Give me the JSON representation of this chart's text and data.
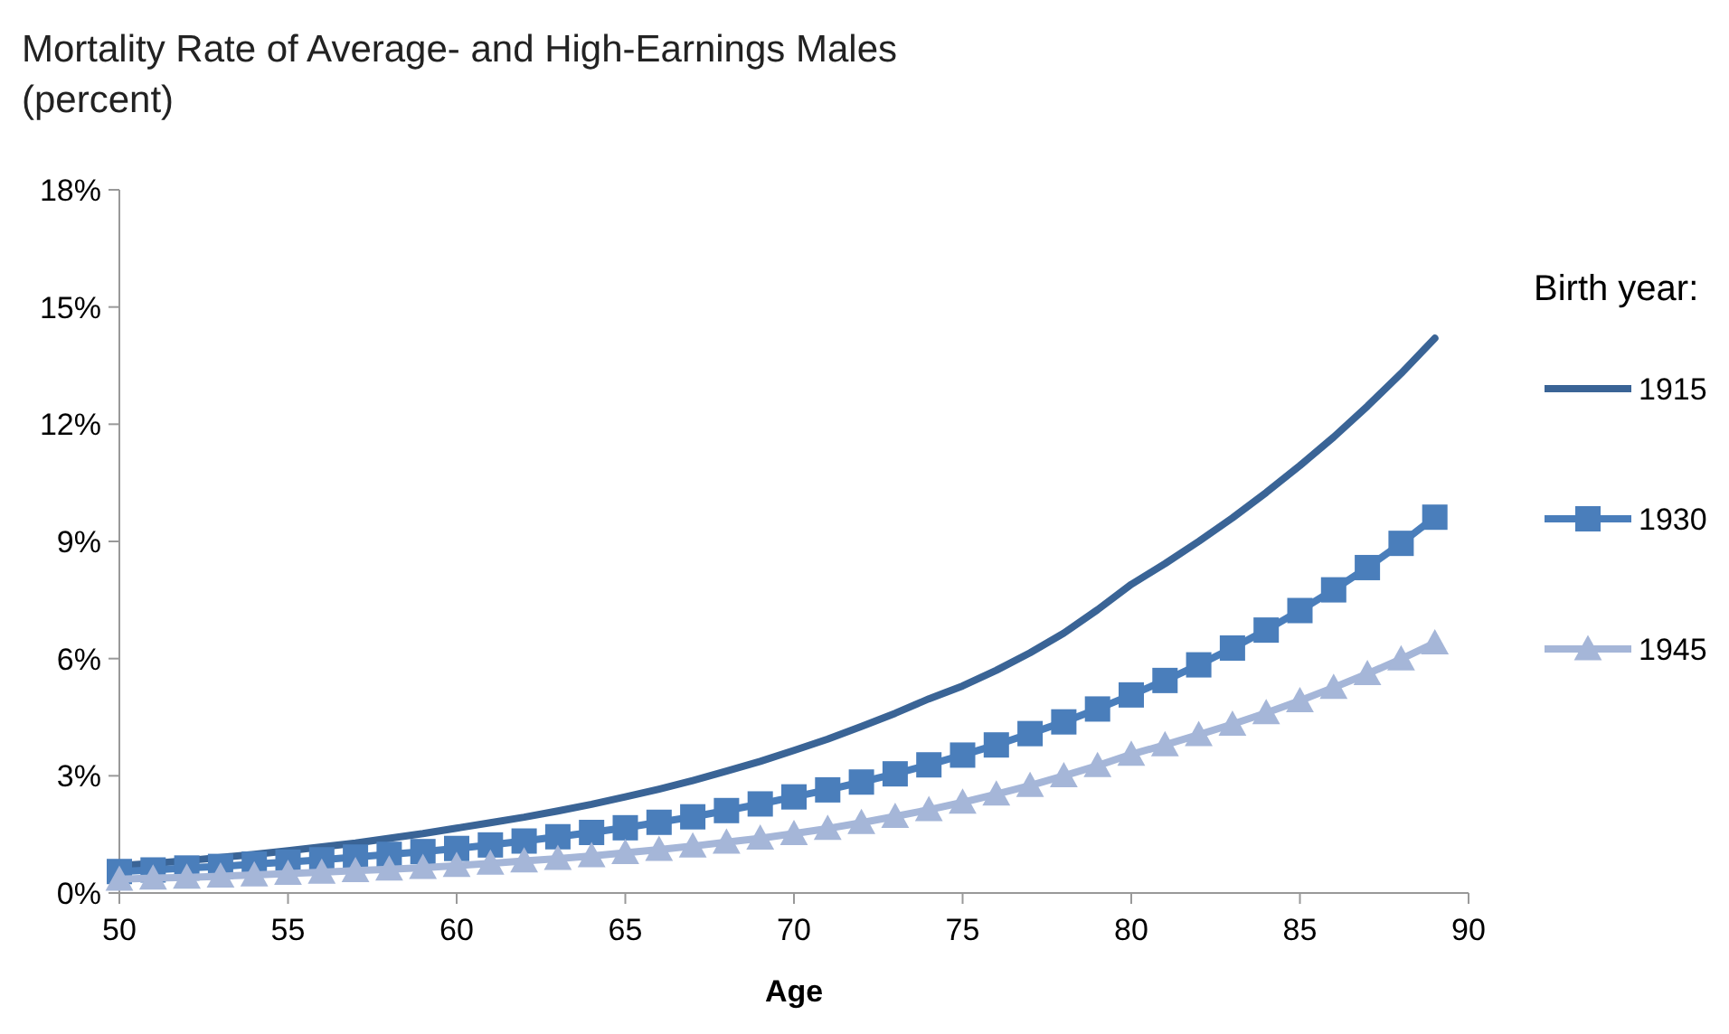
{
  "chart_data": {
    "type": "line",
    "title": "Mortality Rate of Average- and High-Earnings Males",
    "subtitle": "(percent)",
    "xlabel": "Age",
    "legend_title": "Birth year:",
    "legend": "right",
    "grid": false,
    "x": [
      50,
      51,
      52,
      53,
      54,
      55,
      56,
      57,
      58,
      59,
      60,
      61,
      62,
      63,
      64,
      65,
      66,
      67,
      68,
      69,
      70,
      71,
      72,
      73,
      74,
      75,
      76,
      77,
      78,
      79,
      80,
      81,
      82,
      83,
      84,
      85,
      86,
      87,
      88,
      89
    ],
    "xlim": [
      50,
      90
    ],
    "xticks": [
      50,
      55,
      60,
      65,
      70,
      75,
      80,
      85,
      90
    ],
    "ylim": [
      0,
      18
    ],
    "yticks": [
      {
        "value": 0,
        "label": "0%"
      },
      {
        "value": 3,
        "label": "3%"
      },
      {
        "value": 6,
        "label": "6%"
      },
      {
        "value": 9,
        "label": "9%"
      },
      {
        "value": 12,
        "label": "12%"
      },
      {
        "value": 15,
        "label": "15%"
      },
      {
        "value": 18,
        "label": "18%"
      }
    ],
    "series": [
      {
        "name": "1915",
        "color": "#3a6496",
        "marker": "none",
        "values": [
          0.7,
          0.76,
          0.83,
          0.91,
          0.99,
          1.08,
          1.18,
          1.28,
          1.4,
          1.52,
          1.66,
          1.8,
          1.94,
          2.1,
          2.27,
          2.46,
          2.66,
          2.88,
          3.12,
          3.37,
          3.65,
          3.94,
          4.26,
          4.6,
          4.97,
          5.3,
          5.7,
          6.15,
          6.65,
          7.25,
          7.9,
          8.43,
          9.0,
          9.6,
          10.25,
          10.94,
          11.67,
          12.46,
          13.3,
          14.2
        ]
      },
      {
        "name": "1930",
        "color": "#4a7ebb",
        "marker": "square",
        "values": [
          0.55,
          0.59,
          0.64,
          0.68,
          0.74,
          0.79,
          0.85,
          0.92,
          0.99,
          1.06,
          1.14,
          1.23,
          1.33,
          1.44,
          1.55,
          1.67,
          1.81,
          1.95,
          2.11,
          2.28,
          2.46,
          2.64,
          2.84,
          3.05,
          3.28,
          3.53,
          3.79,
          4.08,
          4.38,
          4.71,
          5.07,
          5.44,
          5.84,
          6.27,
          6.73,
          7.23,
          7.76,
          8.33,
          8.95,
          9.62
        ]
      },
      {
        "name": "1945",
        "color": "#a5b6d8",
        "marker": "triangle",
        "values": [
          0.35,
          0.38,
          0.4,
          0.43,
          0.46,
          0.5,
          0.53,
          0.57,
          0.61,
          0.65,
          0.7,
          0.76,
          0.82,
          0.88,
          0.95,
          1.03,
          1.11,
          1.2,
          1.3,
          1.4,
          1.52,
          1.65,
          1.8,
          1.96,
          2.13,
          2.32,
          2.53,
          2.75,
          3.0,
          3.26,
          3.55,
          3.79,
          4.05,
          4.32,
          4.61,
          4.92,
          5.26,
          5.61,
          5.99,
          6.4
        ]
      }
    ]
  }
}
